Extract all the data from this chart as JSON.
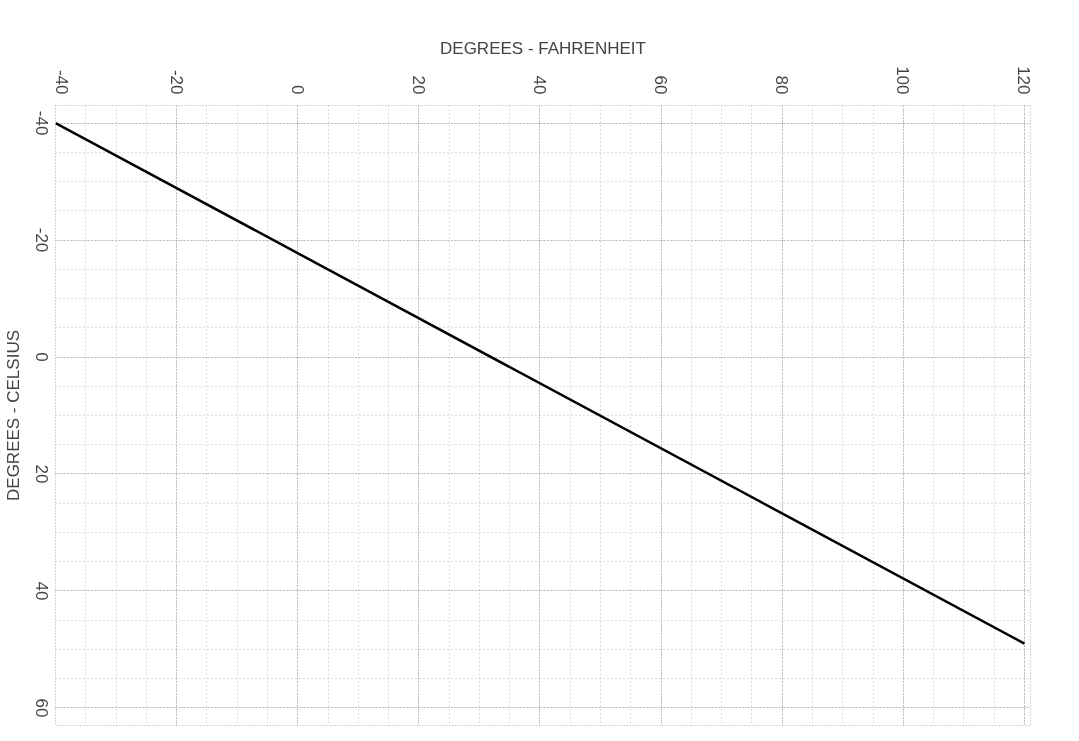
{
  "chart_data": {
    "type": "line",
    "xlabel": "DEGREES - FAHRENHEIT",
    "ylabel": "DEGREES - CELSIUS",
    "x": [
      -40,
      120
    ],
    "series": [
      {
        "color": "#000000",
        "values": [
          -40,
          49
        ]
      }
    ],
    "xlim": [
      -40,
      121
    ],
    "xticks": [
      -40,
      -20,
      0,
      20,
      40,
      60,
      80,
      100,
      120
    ],
    "ylim": [
      63,
      -43
    ],
    "yticks": [
      -40,
      -20,
      0,
      20,
      40,
      60
    ],
    "grid": true,
    "line_style": "solid",
    "marker": "none"
  }
}
